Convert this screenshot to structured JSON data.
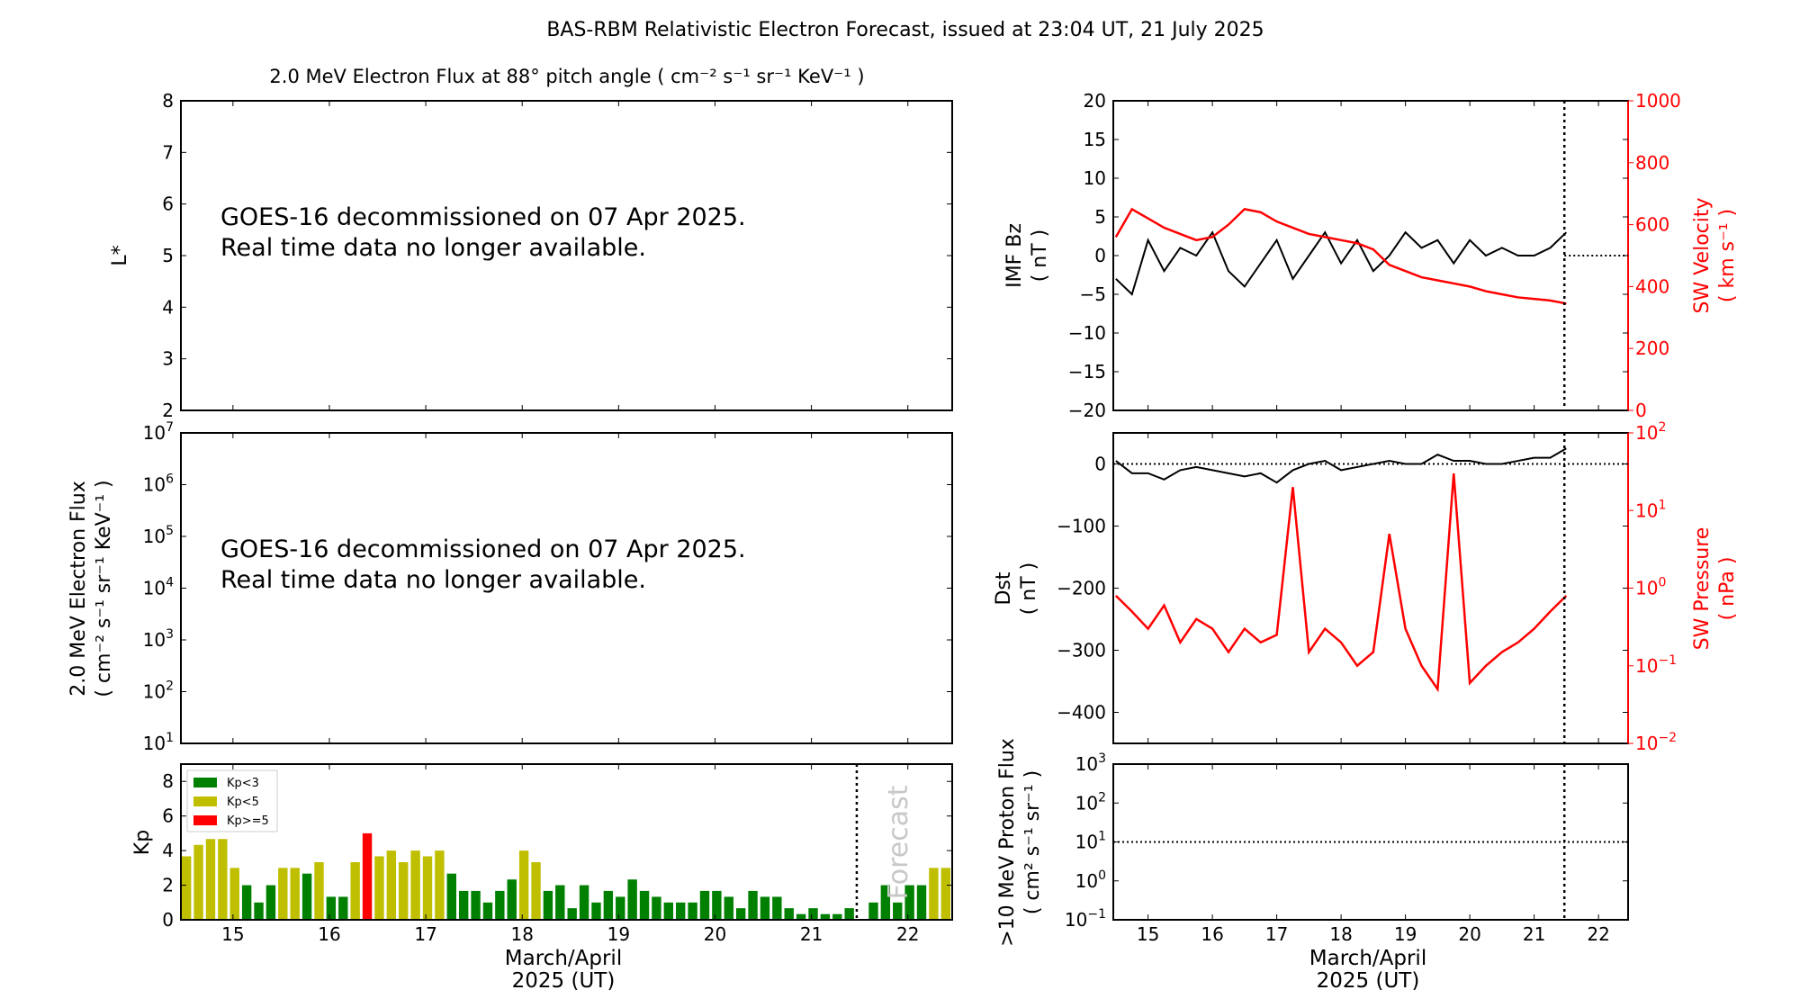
{
  "title": "BAS-RBM Relativistic Electron Forecast, issued at 23:04 UT, 21 July 2025",
  "left_subtitle": "2.0 MeV Electron Flux at 88° pitch angle ( cm⁻² s⁻¹ sr⁻¹ KeV⁻¹ )",
  "notice": {
    "line1": "GOES-16 decommissioned on 07 Apr 2025.",
    "line2": "Real time data no longer available."
  },
  "xaxis": {
    "label1": "March/April",
    "label2": "2025 (UT)",
    "xlim": [
      14.46,
      22.46
    ],
    "ticks": [
      15,
      16,
      17,
      18,
      19,
      20,
      21,
      22
    ],
    "now": 21.47
  },
  "colors": {
    "kp_low": "#008000",
    "kp_mid": "#bfbf00",
    "kp_high": "#ff0000",
    "secondary_axis": "#ff0000",
    "forecast_text": "#c8c8c8"
  },
  "chart_data": [
    {
      "type": "line",
      "id": "lstar",
      "ylabel": "L*",
      "ylim": [
        2,
        8
      ],
      "yticks": [
        "2",
        "3",
        "4",
        "5",
        "6",
        "7",
        "8"
      ],
      "series": []
    },
    {
      "type": "line",
      "id": "flux",
      "ylabel": "2.0 MeV Electron Flux",
      "ylabel2": "( cm⁻² s⁻¹ sr⁻¹ KeV⁻¹ )",
      "yscale": "log",
      "ylim": [
        10,
        10000000
      ],
      "yticks": [
        {
          "b": "10",
          "e": "1"
        },
        {
          "b": "10",
          "e": "2"
        },
        {
          "b": "10",
          "e": "3"
        },
        {
          "b": "10",
          "e": "4"
        },
        {
          "b": "10",
          "e": "5"
        },
        {
          "b": "10",
          "e": "6"
        },
        {
          "b": "10",
          "e": "7"
        }
      ],
      "series": []
    },
    {
      "type": "bar",
      "id": "kp",
      "ylabel": "Kp",
      "ylim": [
        0,
        9
      ],
      "yticks": [
        "0",
        "2",
        "4",
        "6",
        "8"
      ],
      "bar_width_days": 0.125,
      "legend": {
        "position": "top-left",
        "entries": [
          {
            "label": "Kp<3",
            "color": "#008000"
          },
          {
            "label": "Kp<5",
            "color": "#bfbf00"
          },
          {
            "label": "Kp>=5",
            "color": "#ff0000"
          }
        ]
      },
      "forecast_label": "Forecast",
      "observed": [
        3.67,
        4.33,
        4.67,
        4.67,
        3,
        2,
        1,
        2,
        3,
        3,
        2.67,
        3.33,
        1.33,
        1.33,
        3.33,
        5,
        3.67,
        4,
        3.33,
        4,
        3.67,
        4,
        2.67,
        1.67,
        1.67,
        1,
        1.67,
        2.33,
        4,
        3.33,
        1.67,
        2,
        0.67,
        2,
        1,
        1.67,
        1.33,
        2.33,
        1.67,
        1.33,
        1,
        1,
        1,
        1.67,
        1.67,
        1.33,
        0.67,
        1.67,
        1.33,
        1.33,
        0.67,
        0.33,
        0.67,
        0.33,
        0.33,
        0.67
      ],
      "forecast": [
        null,
        1,
        2,
        1,
        2,
        2,
        3,
        3
      ]
    },
    {
      "type": "line",
      "id": "imf",
      "ylabel": "IMF Bz",
      "ylabel2": "( nT )",
      "ylim": [
        -20,
        20
      ],
      "yticks": [
        "−20",
        "−15",
        "−10",
        "−5",
        "0",
        "5",
        "10",
        "15",
        "20"
      ],
      "yticks_values": [
        -20,
        -15,
        -10,
        -5,
        0,
        5,
        10,
        15,
        20
      ],
      "y2label": "SW Velocity",
      "y2label2": "( km s⁻¹ )",
      "y2lim": [
        0,
        1000
      ],
      "y2ticks": [
        "0",
        "200",
        "400",
        "600",
        "800",
        "1000"
      ],
      "x": [
        14.5,
        14.75,
        15,
        15.25,
        15.5,
        15.75,
        16,
        16.25,
        16.5,
        16.75,
        17,
        17.25,
        17.5,
        17.75,
        18,
        18.25,
        18.5,
        18.75,
        19,
        19.25,
        19.5,
        19.75,
        20,
        20.25,
        20.5,
        20.75,
        21,
        21.25,
        21.5
      ],
      "series": [
        {
          "axis": "left",
          "color": "#000000",
          "values": [
            -3,
            -5,
            2,
            -2,
            1,
            0,
            3,
            -2,
            -4,
            -1,
            2,
            -3,
            0,
            3,
            -1,
            2,
            -2,
            0,
            3,
            1,
            2,
            -1,
            2,
            0,
            1,
            0,
            0,
            1,
            3
          ]
        },
        {
          "axis": "right",
          "color": "#ff0000",
          "values": [
            560,
            650,
            620,
            590,
            570,
            550,
            560,
            600,
            650,
            640,
            610,
            590,
            570,
            560,
            550,
            540,
            520,
            470,
            450,
            430,
            420,
            410,
            400,
            385,
            375,
            365,
            360,
            355,
            345
          ]
        }
      ]
    },
    {
      "type": "line",
      "id": "dst",
      "ylabel": "Dst",
      "ylabel2": "( nT )",
      "ylim": [
        -450,
        50
      ],
      "yticks": [
        "−400",
        "−300",
        "−200",
        "−100",
        "0"
      ],
      "yticks_values": [
        -400,
        -300,
        -200,
        -100,
        0
      ],
      "y2label": "SW Pressure",
      "y2label2": "( nPa )",
      "y2scale": "log",
      "y2lim": [
        0.01,
        100
      ],
      "y2ticks": [
        {
          "b": "10",
          "e": "−2"
        },
        {
          "b": "10",
          "e": "−1"
        },
        {
          "b": "10",
          "e": "0"
        },
        {
          "b": "10",
          "e": "1"
        },
        {
          "b": "10",
          "e": "2"
        }
      ],
      "x": [
        14.5,
        14.75,
        15,
        15.25,
        15.5,
        15.75,
        16,
        16.25,
        16.5,
        16.75,
        17,
        17.25,
        17.5,
        17.75,
        18,
        18.25,
        18.5,
        18.75,
        19,
        19.25,
        19.5,
        19.75,
        20,
        20.25,
        20.5,
        20.75,
        21,
        21.25,
        21.5
      ],
      "series": [
        {
          "axis": "left",
          "color": "#000000",
          "values": [
            5,
            -15,
            -15,
            -25,
            -10,
            -5,
            -10,
            -15,
            -20,
            -15,
            -30,
            -10,
            0,
            5,
            -10,
            -5,
            0,
            5,
            0,
            0,
            15,
            5,
            5,
            0,
            0,
            5,
            10,
            10,
            25
          ]
        },
        {
          "axis": "right",
          "color": "#ff0000",
          "values": [
            0.8,
            0.5,
            0.3,
            0.6,
            0.2,
            0.4,
            0.3,
            0.15,
            0.3,
            0.2,
            0.25,
            20,
            0.15,
            0.3,
            0.2,
            0.1,
            0.15,
            5,
            0.3,
            0.1,
            0.05,
            30,
            0.06,
            0.1,
            0.15,
            0.2,
            0.3,
            0.5,
            0.8
          ]
        }
      ]
    },
    {
      "type": "line",
      "id": "proton",
      "ylabel": ">10 MeV Proton Flux",
      "ylabel2": "( cm² s⁻¹ sr⁻¹ )",
      "yscale": "log",
      "ylim": [
        0.1,
        1000
      ],
      "yticks": [
        {
          "b": "10",
          "e": "−1"
        },
        {
          "b": "10",
          "e": "0"
        },
        {
          "b": "10",
          "e": "1"
        },
        {
          "b": "10",
          "e": "2"
        },
        {
          "b": "10",
          "e": "3"
        }
      ],
      "threshold": 10,
      "series": []
    }
  ]
}
